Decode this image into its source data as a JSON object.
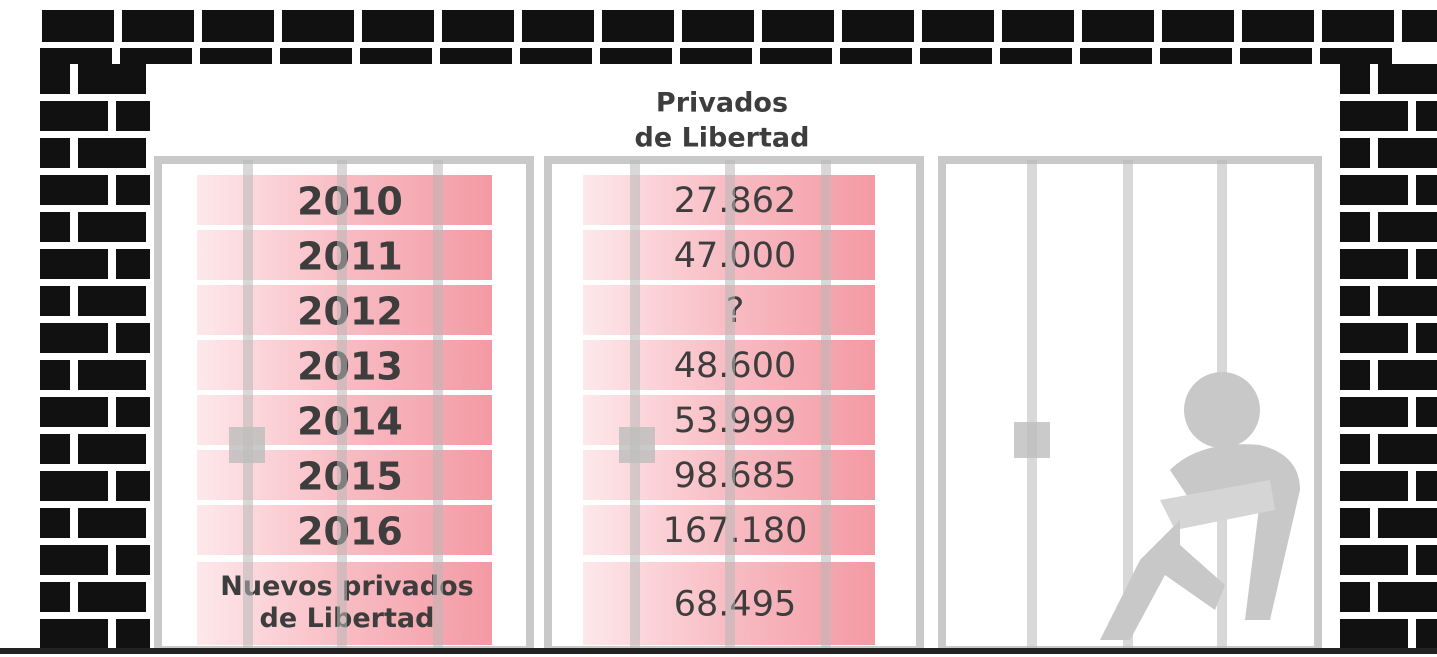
{
  "header": {
    "title": [
      "Privados",
      "de Libertad"
    ]
  },
  "table": {
    "rows": [
      {
        "label": "2010",
        "value": "27.862"
      },
      {
        "label": "2011",
        "value": "47.000"
      },
      {
        "label": "2012",
        "value": "?"
      },
      {
        "label": "2013",
        "value": "48.600"
      },
      {
        "label": "2014",
        "value": "53.999"
      },
      {
        "label": "2015",
        "value": "98.685"
      },
      {
        "label": "2016",
        "value": "167.180"
      },
      {
        "label": [
          "Nuevos privados",
          "de Libertad"
        ],
        "value": "68.495"
      }
    ]
  }
}
